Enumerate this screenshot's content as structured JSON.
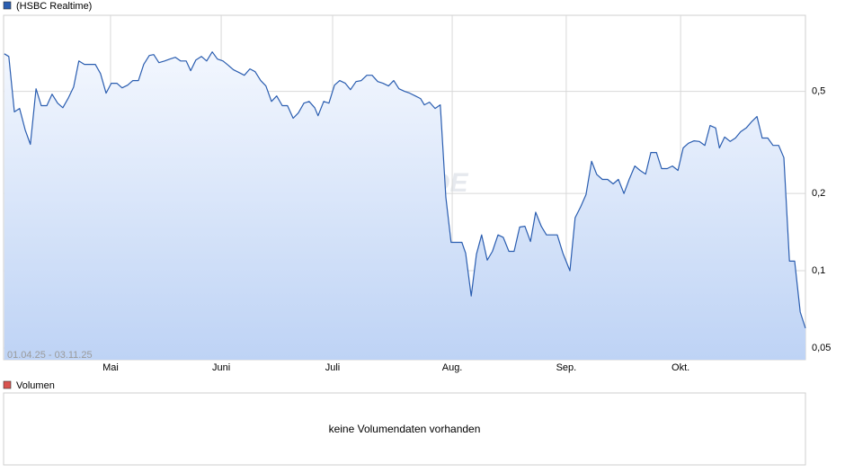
{
  "chart_data": {
    "type": "line",
    "log_y": true,
    "grid": true,
    "date_range": "01.04.25 - 03.11.25",
    "watermark": "ARIVA.DE",
    "x": [
      1.5,
      2.7,
      4.2,
      5.6,
      7.1,
      8.5,
      10.0,
      11.4,
      12.9,
      14.3,
      15.8,
      17.2,
      18.6,
      20.1,
      21.5,
      23.0,
      24.4,
      25.9,
      27.3,
      28.8,
      30.2,
      31.7,
      33.1,
      34.6,
      36.0,
      37.5,
      38.9,
      40.4,
      41.6,
      43.0,
      44.5,
      45.9,
      47.4,
      48.8,
      50.3,
      51.5,
      52.9,
      54.4,
      55.8,
      57.3,
      58.7,
      60.2,
      61.6,
      63.0,
      64.5,
      65.9,
      67.4,
      68.8,
      70.3,
      71.7,
      73.2,
      74.6,
      76.1,
      77.5,
      79.0,
      80.4,
      81.9,
      83.3,
      84.8,
      85.7,
      87.2,
      88.6,
      90.1,
      91.5,
      93.0,
      94.4,
      95.9,
      97.3,
      98.8,
      100.2,
      101.7,
      103.1,
      104.6,
      106.0,
      107.4,
      108.9,
      110.3,
      111.8,
      113.2,
      114.2,
      115.6,
      117.1,
      118.5,
      120.0,
      121.4,
      122.9,
      124.3,
      125.3,
      126.8,
      128.2,
      129.6,
      131.1,
      132.5,
      134.0,
      135.4,
      136.9,
      138.3,
      139.8,
      141.2,
      142.7,
      144.1,
      145.6,
      147.0,
      148.5,
      149.9,
      151.4,
      153.3,
      154.7,
      156.2,
      157.6,
      159.1,
      160.5,
      162.0,
      163.4,
      164.9,
      166.3,
      167.8,
      169.2,
      170.7,
      172.1,
      173.6,
      175.0,
      176.5,
      177.9,
      179.4,
      180.8,
      182.3,
      183.7,
      185.1,
      186.6,
      188.0,
      189.5,
      190.9,
      192.4,
      193.4,
      194.8,
      196.3,
      197.7,
      199.1,
      200.6,
      202.0,
      203.5,
      204.9,
      206.4,
      207.8,
      209.3,
      210.7,
      212.2,
      213.6,
      215.1,
      216.5
    ],
    "series": [
      {
        "name": "(HSBC Realtime)",
        "color": "#2a5db0",
        "values": [
          0.701,
          0.684,
          0.416,
          0.429,
          0.354,
          0.311,
          0.512,
          0.44,
          0.44,
          0.488,
          0.45,
          0.432,
          0.469,
          0.52,
          0.657,
          0.637,
          0.637,
          0.637,
          0.587,
          0.492,
          0.538,
          0.538,
          0.516,
          0.529,
          0.551,
          0.551,
          0.637,
          0.69,
          0.696,
          0.647,
          0.657,
          0.668,
          0.679,
          0.657,
          0.657,
          0.602,
          0.663,
          0.684,
          0.657,
          0.713,
          0.668,
          0.657,
          0.632,
          0.607,
          0.592,
          0.578,
          0.612,
          0.597,
          0.551,
          0.525,
          0.457,
          0.48,
          0.44,
          0.44,
          0.393,
          0.412,
          0.45,
          0.457,
          0.432,
          0.402,
          0.457,
          0.45,
          0.529,
          0.551,
          0.538,
          0.508,
          0.546,
          0.551,
          0.578,
          0.578,
          0.546,
          0.538,
          0.525,
          0.551,
          0.512,
          0.5,
          0.492,
          0.48,
          0.469,
          0.443,
          0.454,
          0.429,
          0.443,
          0.193,
          0.129,
          0.129,
          0.129,
          0.117,
          0.0797,
          0.116,
          0.138,
          0.11,
          0.119,
          0.138,
          0.135,
          0.119,
          0.119,
          0.148,
          0.149,
          0.13,
          0.169,
          0.149,
          0.138,
          0.138,
          0.138,
          0.117,
          0.1,
          0.161,
          0.178,
          0.198,
          0.267,
          0.237,
          0.227,
          0.227,
          0.218,
          0.227,
          0.2,
          0.227,
          0.256,
          0.246,
          0.238,
          0.289,
          0.289,
          0.25,
          0.25,
          0.256,
          0.246,
          0.301,
          0.314,
          0.321,
          0.319,
          0.308,
          0.368,
          0.36,
          0.301,
          0.332,
          0.319,
          0.329,
          0.348,
          0.36,
          0.38,
          0.399,
          0.329,
          0.329,
          0.308,
          0.308,
          0.276,
          0.109,
          0.109,
          0.069,
          0.0597
        ]
      }
    ],
    "xlim": [
      1.3,
      216.5
    ],
    "xticks": [
      {
        "value": 30.0,
        "label": "Mai"
      },
      {
        "value": 59.7,
        "label": "Juni"
      },
      {
        "value": 89.6,
        "label": "Juli"
      },
      {
        "value": 121.7,
        "label": "Aug."
      },
      {
        "value": 152.3,
        "label": "Sep."
      },
      {
        "value": 183.0,
        "label": "Okt."
      }
    ],
    "ylim": [
      0.045,
      0.99
    ],
    "yticks": [
      {
        "value": 0.05,
        "label": "0,05"
      },
      {
        "value": 0.1,
        "label": "0,1"
      },
      {
        "value": 0.2,
        "label": "0,2"
      },
      {
        "value": 0.5,
        "label": "0,5"
      }
    ]
  },
  "volume": {
    "legend": "Volumen",
    "color": "#d9534f",
    "message": "keine Volumendaten vorhanden"
  }
}
